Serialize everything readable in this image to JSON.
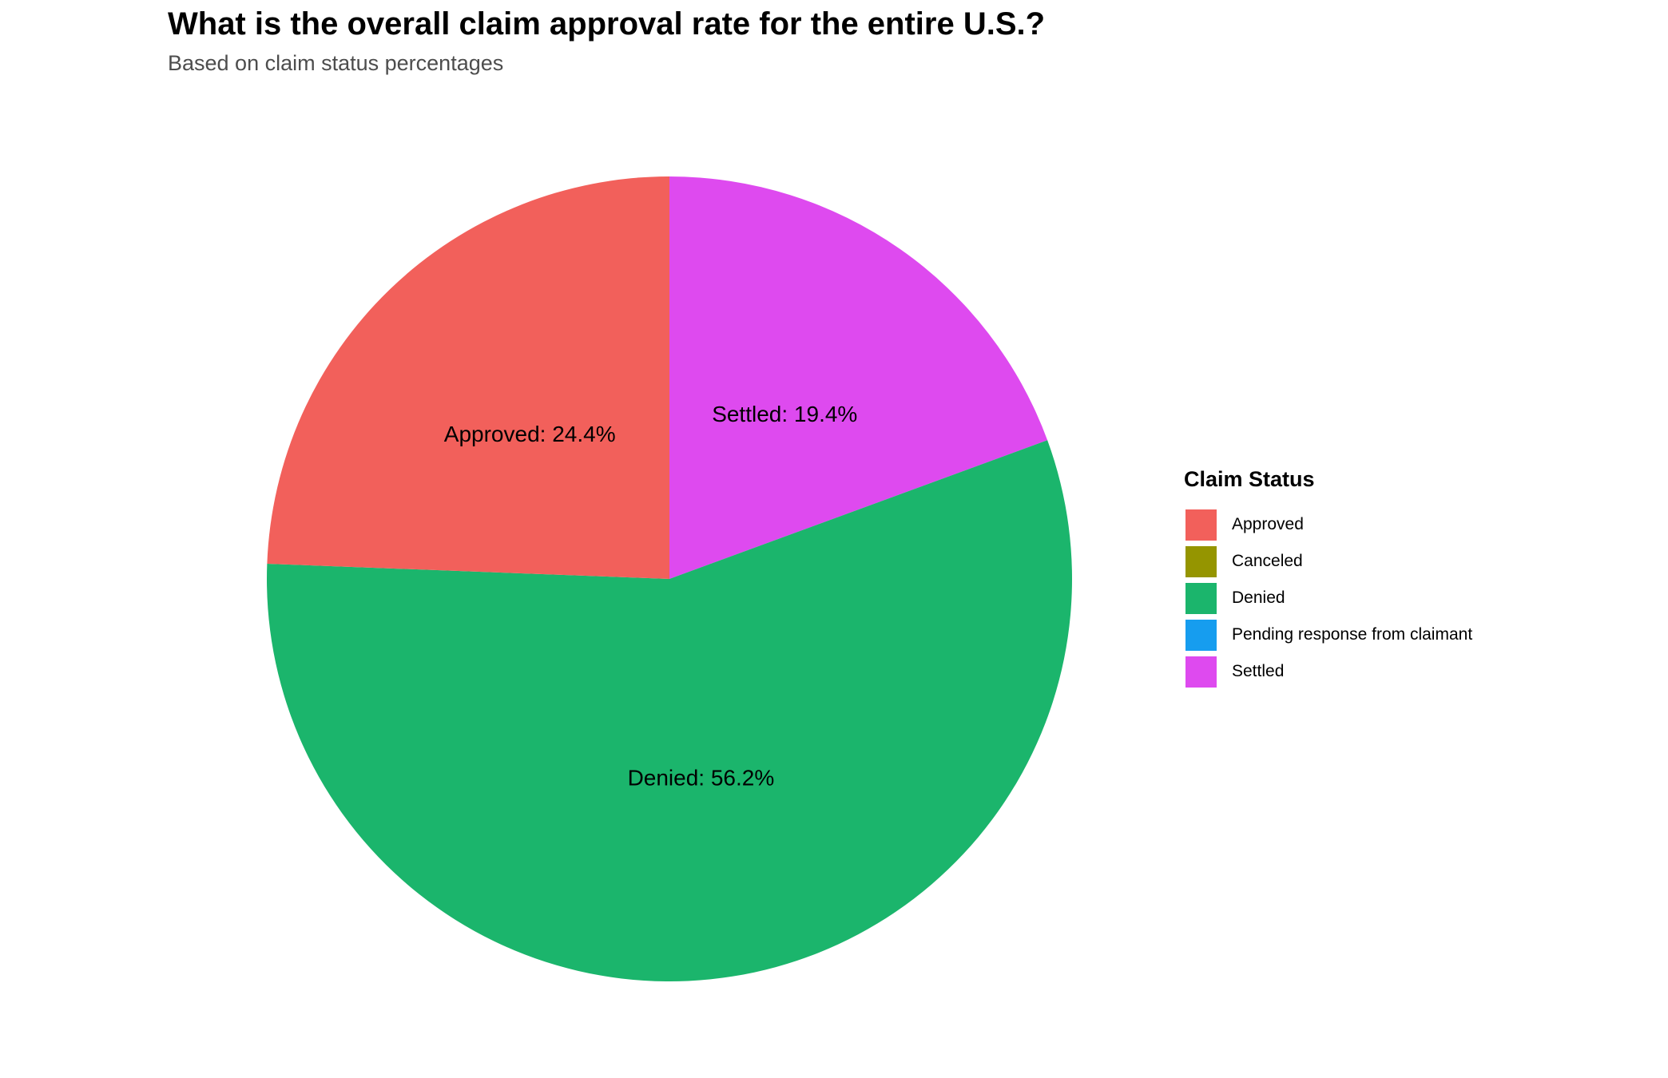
{
  "chart_data": {
    "type": "pie",
    "title": "What is the overall claim approval rate for the entire U.S.?",
    "subtitle": "Based on claim status percentages",
    "legend": {
      "title": "Claim Status",
      "placement": "right",
      "entries": [
        "Approved",
        "Canceled",
        "Denied",
        "Pending response from claimant",
        "Settled"
      ]
    },
    "slices": [
      {
        "name": "Settled",
        "value": 19.4,
        "label": "Settled: 19.4%",
        "color": "#DE4AEF"
      },
      {
        "name": "Denied",
        "value": 56.2,
        "label": "Denied: 56.2%",
        "color": "#1BB56C"
      },
      {
        "name": "Approved",
        "value": 24.4,
        "label": "Approved: 24.4%",
        "color": "#F2605B"
      }
    ],
    "legend_colors": [
      "#F2605B",
      "#959500",
      "#1BB56C",
      "#169DEF",
      "#DE4AEF"
    ]
  }
}
